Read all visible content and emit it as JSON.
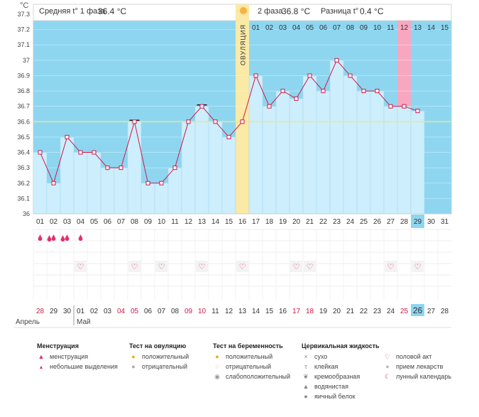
{
  "header": {
    "phase1_label": "Средняя t° 1 фаза",
    "phase1_value": "36.4 °C",
    "phase2_label": "2 фаза",
    "phase2_value": "36.8 °C",
    "diff_label": "Разница t°",
    "diff_value": "0.4 °C",
    "unit": "°C"
  },
  "ovulation_label": "ОВУЛЯЦИЯ",
  "chart_data": {
    "type": "line",
    "cycle_days": [
      "01",
      "02",
      "03",
      "04",
      "05",
      "06",
      "07",
      "08",
      "09",
      "10",
      "11",
      "12",
      "13",
      "14",
      "15",
      "16",
      "17",
      "18",
      "19",
      "20",
      "21",
      "22",
      "23",
      "24",
      "25",
      "26",
      "27",
      "28",
      "29",
      "30",
      "31"
    ],
    "temperatures": [
      36.4,
      36.2,
      36.5,
      36.4,
      36.4,
      36.3,
      36.3,
      36.6,
      36.2,
      36.2,
      36.3,
      36.6,
      36.7,
      36.6,
      36.5,
      36.6,
      36.9,
      36.7,
      36.8,
      36.75,
      36.9,
      36.8,
      37.0,
      36.9,
      36.8,
      36.8,
      36.7,
      36.7,
      36.67
    ],
    "y_ticks": [
      "36",
      "36.1",
      "36.2",
      "36.3",
      "36.4",
      "36.5",
      "36.6",
      "36.7",
      "36.8",
      "36.9",
      "37",
      "37.1",
      "37.2",
      "37.3"
    ],
    "ylim": [
      36,
      37.3
    ],
    "coverline": 36.6,
    "ovulation_day": 16,
    "current_day": 29,
    "phase2_day_labels": [
      "01",
      "02",
      "03",
      "04",
      "05",
      "06",
      "07",
      "08",
      "09",
      "10",
      "11",
      "12",
      "13",
      "14",
      "15"
    ],
    "highlighted_phase2_day": "12",
    "dark_marker_days": [
      8,
      13
    ],
    "colors": {
      "phase_bg": "#8ed6f0",
      "bar": "#cdeefc",
      "bar_edge": "#a3d8ef",
      "line": "#d0184a",
      "coverline": "#f2e57a",
      "ovulation": "#fbe9a6",
      "highlight": "#f7a8c0",
      "current": "#8ed6f0"
    }
  },
  "calendar": {
    "dates": [
      "28",
      "29",
      "30",
      "01",
      "02",
      "03",
      "04",
      "05",
      "06",
      "07",
      "08",
      "09",
      "10",
      "11",
      "12",
      "13",
      "14",
      "15",
      "16",
      "17",
      "18",
      "19",
      "20",
      "21",
      "22",
      "23",
      "24",
      "25",
      "26",
      "27",
      "28"
    ],
    "red_dates": [
      0,
      6,
      7,
      11,
      12,
      19,
      20,
      27
    ],
    "month1": "Апрель",
    "month2": "Май",
    "current_index": 28
  },
  "markers": {
    "menstruation_large": [
      2,
      3
    ],
    "menstruation_small": [
      1,
      2,
      3,
      4
    ],
    "sex_days": [
      4,
      8,
      10,
      13,
      16,
      20,
      21,
      27,
      29
    ]
  },
  "legend": {
    "menstruation": {
      "title": "Менструация",
      "items": [
        "менструация",
        "небольшие выделения"
      ]
    },
    "ovulation_test": {
      "title": "Тест на овуляцию",
      "items": [
        "положительный",
        "отрицательный"
      ]
    },
    "pregnancy_test": {
      "title": "Тест на беременность",
      "items": [
        "положительный",
        "отрицательный",
        "слабоположительный"
      ]
    },
    "cervical": {
      "title": "Цервикальная жидкость",
      "items": [
        "сухо",
        "клейкая",
        "кремообразная",
        "водянистая",
        "яичный белок"
      ]
    },
    "other": {
      "items": [
        "половой акт",
        "прием лекарств",
        "лунный календарь"
      ]
    },
    "icons": [
      "drop-icon",
      "small-drop-icon",
      "sun-icon-orange",
      "sun-icon-gray",
      "sun-icon-orange",
      "circle-icon-light",
      "swirl-icon",
      "cross-icon",
      "t-icon",
      "cream-icon",
      "drop-gray-icon",
      "drop-gray-icon",
      "heart-icon",
      "pill-icon",
      "moon-icon"
    ]
  }
}
